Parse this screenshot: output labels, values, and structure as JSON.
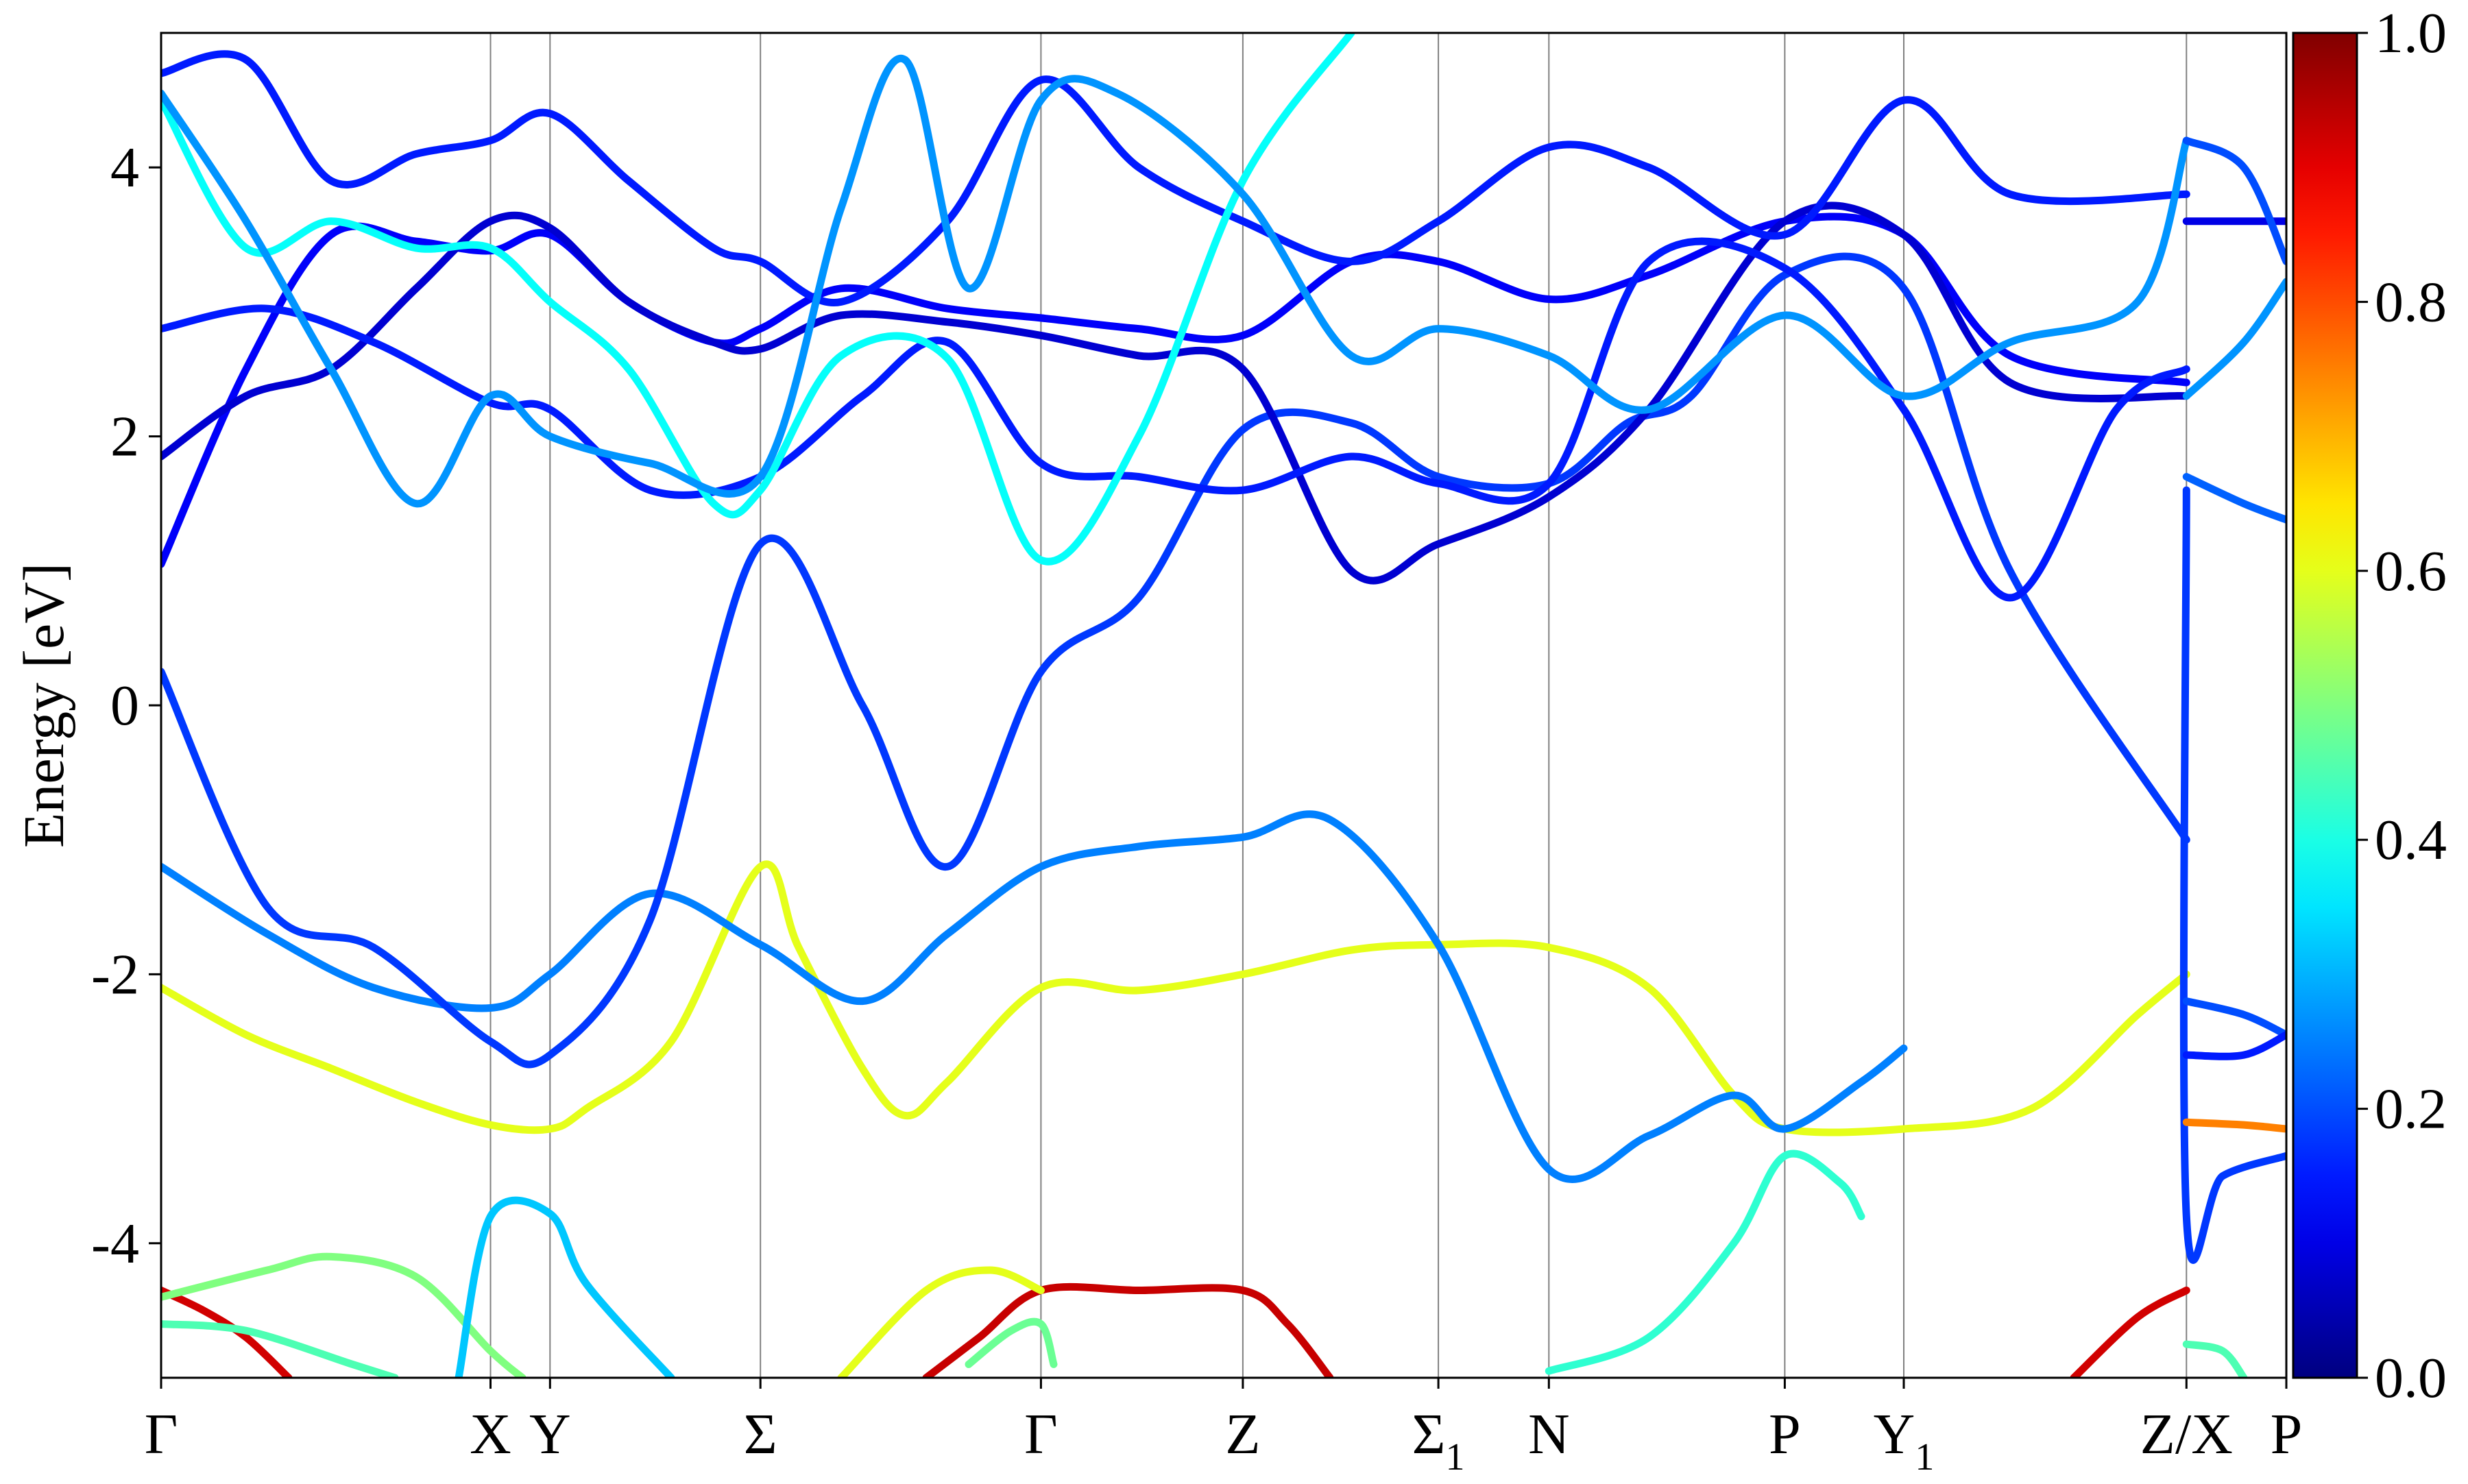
{
  "chart_data": {
    "type": "line",
    "title": "",
    "xlabel": "",
    "ylabel": "Energy [eV]",
    "ylim": [
      -5,
      5
    ],
    "yticks": [
      -4,
      -2,
      0,
      2,
      4
    ],
    "ytick_labels": [
      "-4",
      "-2",
      "0",
      "2",
      "4"
    ],
    "grid": "vertical lines at high-symmetry k-points",
    "kpoints": [
      {
        "label": "Γ",
        "sub": "",
        "x": 0.0
      },
      {
        "label": "X",
        "sub": "",
        "x": 0.155
      },
      {
        "label": "Y",
        "sub": "",
        "x": 0.183
      },
      {
        "label": "Σ",
        "sub": "",
        "x": 0.282
      },
      {
        "label": "Γ",
        "sub": "",
        "x": 0.414
      },
      {
        "label": "Z",
        "sub": "",
        "x": 0.509
      },
      {
        "label": "Σ",
        "sub": "1",
        "x": 0.601
      },
      {
        "label": "N",
        "sub": "",
        "x": 0.653
      },
      {
        "label": "P",
        "sub": "",
        "x": 0.764
      },
      {
        "label": "Y",
        "sub": "1",
        "x": 0.82
      },
      {
        "label": "Z/X",
        "sub": "",
        "x": 0.953
      },
      {
        "label": "P",
        "sub": "",
        "x": 1.0
      }
    ],
    "colorbar": {
      "colormap": "jet",
      "range": [
        0.0,
        1.0
      ],
      "ticks": [
        0.0,
        0.2,
        0.4,
        0.6,
        0.8,
        1.0
      ],
      "tick_labels": [
        "0.0",
        "0.2",
        "0.4",
        "0.6",
        "0.8",
        "1.0"
      ]
    },
    "series": [
      {
        "points": [
          [
            0.0,
            -4.35
          ],
          [
            0.02,
            -4.5
          ],
          [
            0.04,
            -4.7
          ],
          [
            0.06,
            -5.0
          ]
        ],
        "weight": 0.92
      },
      {
        "points": [
          [
            0.36,
            -5.0
          ],
          [
            0.385,
            -4.7
          ],
          [
            0.414,
            -4.35
          ],
          [
            0.46,
            -4.35
          ],
          [
            0.509,
            -4.35
          ],
          [
            0.53,
            -4.6
          ],
          [
            0.55,
            -5.0
          ]
        ],
        "weight": 0.93
      },
      {
        "points": [
          [
            0.9,
            -5.0
          ],
          [
            0.93,
            -4.55
          ],
          [
            0.953,
            -4.35
          ]
        ],
        "weight": 0.92
      },
      {
        "points": [
          [
            0.0,
            -4.4
          ],
          [
            0.05,
            -4.2
          ],
          [
            0.08,
            -4.1
          ],
          [
            0.12,
            -4.25
          ],
          [
            0.155,
            -4.8
          ],
          [
            0.17,
            -5.0
          ]
        ],
        "weight": 0.5
      },
      {
        "points": [
          [
            0.0,
            -4.6
          ],
          [
            0.04,
            -4.65
          ],
          [
            0.09,
            -4.9
          ],
          [
            0.11,
            -5.0
          ]
        ],
        "weight": 0.45
      },
      {
        "points": [
          [
            0.14,
            -5.0
          ],
          [
            0.155,
            -3.8
          ],
          [
            0.183,
            -3.78
          ],
          [
            0.2,
            -4.3
          ],
          [
            0.24,
            -5.0
          ]
        ],
        "weight": 0.32
      },
      {
        "points": [
          [
            0.32,
            -5.0
          ],
          [
            0.36,
            -4.35
          ],
          [
            0.39,
            -4.2
          ],
          [
            0.414,
            -4.35
          ]
        ],
        "weight": 0.6
      },
      {
        "points": [
          [
            0.38,
            -4.9
          ],
          [
            0.4,
            -4.65
          ],
          [
            0.414,
            -4.6
          ],
          [
            0.42,
            -4.9
          ]
        ],
        "weight": 0.48
      },
      {
        "points": [
          [
            0.653,
            -4.95
          ],
          [
            0.7,
            -4.7
          ],
          [
            0.74,
            -4.0
          ],
          [
            0.764,
            -3.35
          ],
          [
            0.79,
            -3.55
          ],
          [
            0.8,
            -3.8
          ]
        ],
        "weight": 0.42
      },
      {
        "points": [
          [
            0.0,
            -2.1
          ],
          [
            0.04,
            -2.45
          ],
          [
            0.08,
            -2.7
          ],
          [
            0.12,
            -2.95
          ],
          [
            0.155,
            -3.12
          ],
          [
            0.183,
            -3.15
          ],
          [
            0.2,
            -3.0
          ],
          [
            0.24,
            -2.5
          ],
          [
            0.282,
            -1.2
          ],
          [
            0.3,
            -1.8
          ],
          [
            0.33,
            -2.7
          ],
          [
            0.35,
            -3.05
          ],
          [
            0.37,
            -2.8
          ],
          [
            0.414,
            -2.1
          ],
          [
            0.46,
            -2.12
          ],
          [
            0.509,
            -2.0
          ],
          [
            0.56,
            -1.82
          ],
          [
            0.601,
            -1.78
          ],
          [
            0.653,
            -1.8
          ],
          [
            0.7,
            -2.1
          ],
          [
            0.74,
            -2.9
          ],
          [
            0.764,
            -3.15
          ],
          [
            0.82,
            -3.15
          ],
          [
            0.88,
            -3.0
          ],
          [
            0.93,
            -2.3
          ],
          [
            0.953,
            -2.0
          ]
        ],
        "weight": 0.6
      },
      {
        "points": [
          [
            0.0,
            -1.2
          ],
          [
            0.05,
            -1.7
          ],
          [
            0.1,
            -2.1
          ],
          [
            0.155,
            -2.25
          ],
          [
            0.183,
            -2.0
          ],
          [
            0.23,
            -1.4
          ],
          [
            0.282,
            -1.78
          ],
          [
            0.33,
            -2.2
          ],
          [
            0.37,
            -1.7
          ],
          [
            0.414,
            -1.2
          ],
          [
            0.46,
            -1.05
          ],
          [
            0.509,
            -0.98
          ],
          [
            0.55,
            -0.85
          ],
          [
            0.601,
            -1.78
          ],
          [
            0.653,
            -3.45
          ],
          [
            0.7,
            -3.2
          ],
          [
            0.74,
            -2.9
          ],
          [
            0.764,
            -3.15
          ],
          [
            0.8,
            -2.8
          ],
          [
            0.82,
            -2.55
          ]
        ],
        "weight": 0.25
      },
      {
        "points": [
          [
            0.0,
            0.25
          ],
          [
            0.05,
            -1.5
          ],
          [
            0.1,
            -1.8
          ],
          [
            0.155,
            -2.5
          ],
          [
            0.183,
            -2.6
          ],
          [
            0.23,
            -1.6
          ],
          [
            0.282,
            1.2
          ],
          [
            0.33,
            0.0
          ],
          [
            0.37,
            -1.2
          ],
          [
            0.414,
            0.25
          ],
          [
            0.46,
            0.8
          ],
          [
            0.509,
            2.05
          ],
          [
            0.56,
            2.1
          ],
          [
            0.601,
            1.7
          ],
          [
            0.653,
            1.65
          ],
          [
            0.69,
            2.1
          ],
          [
            0.72,
            2.3
          ],
          [
            0.764,
            3.2
          ],
          [
            0.82,
            3.1
          ],
          [
            0.87,
            1.0
          ],
          [
            0.953,
            -1.0
          ]
        ],
        "weight": 0.18
      },
      {
        "points": [
          [
            0.0,
            1.05
          ],
          [
            0.04,
            2.5
          ],
          [
            0.08,
            3.5
          ],
          [
            0.12,
            3.45
          ],
          [
            0.155,
            3.38
          ],
          [
            0.183,
            3.5
          ],
          [
            0.22,
            3.0
          ],
          [
            0.26,
            2.7
          ],
          [
            0.282,
            2.8
          ],
          [
            0.32,
            3.1
          ],
          [
            0.37,
            2.95
          ],
          [
            0.414,
            2.88
          ],
          [
            0.46,
            2.8
          ],
          [
            0.509,
            2.75
          ],
          [
            0.56,
            3.3
          ],
          [
            0.601,
            3.3
          ],
          [
            0.653,
            3.02
          ],
          [
            0.7,
            3.2
          ],
          [
            0.764,
            3.6
          ],
          [
            0.82,
            3.5
          ],
          [
            0.87,
            2.6
          ],
          [
            0.953,
            2.4
          ]
        ],
        "weight": 0.12
      },
      {
        "points": [
          [
            0.0,
            1.85
          ],
          [
            0.04,
            2.3
          ],
          [
            0.08,
            2.5
          ],
          [
            0.12,
            3.1
          ],
          [
            0.155,
            3.6
          ],
          [
            0.183,
            3.55
          ],
          [
            0.22,
            3.0
          ],
          [
            0.26,
            2.7
          ],
          [
            0.282,
            2.65
          ],
          [
            0.32,
            2.9
          ],
          [
            0.37,
            2.85
          ],
          [
            0.414,
            2.75
          ],
          [
            0.46,
            2.6
          ],
          [
            0.509,
            2.5
          ],
          [
            0.56,
            1.0
          ],
          [
            0.601,
            1.2
          ],
          [
            0.653,
            1.55
          ],
          [
            0.7,
            2.2
          ],
          [
            0.764,
            3.6
          ],
          [
            0.82,
            3.5
          ],
          [
            0.87,
            2.4
          ],
          [
            0.953,
            2.3
          ]
        ],
        "weight": 0.08
      },
      {
        "points": [
          [
            0.0,
            2.8
          ],
          [
            0.05,
            2.95
          ],
          [
            0.1,
            2.7
          ],
          [
            0.155,
            2.25
          ],
          [
            0.183,
            2.2
          ],
          [
            0.23,
            1.6
          ],
          [
            0.282,
            1.7
          ],
          [
            0.33,
            2.3
          ],
          [
            0.37,
            2.7
          ],
          [
            0.414,
            1.8
          ],
          [
            0.46,
            1.7
          ],
          [
            0.509,
            1.6
          ],
          [
            0.56,
            1.85
          ],
          [
            0.601,
            1.65
          ],
          [
            0.653,
            1.65
          ],
          [
            0.7,
            3.3
          ],
          [
            0.764,
            3.25
          ],
          [
            0.82,
            2.2
          ],
          [
            0.87,
            0.8
          ],
          [
            0.92,
            2.2
          ],
          [
            0.953,
            2.5
          ]
        ],
        "weight": 0.15
      },
      {
        "points": [
          [
            0.0,
            4.7
          ],
          [
            0.04,
            4.8
          ],
          [
            0.08,
            3.9
          ],
          [
            0.12,
            4.1
          ],
          [
            0.155,
            4.2
          ],
          [
            0.183,
            4.4
          ],
          [
            0.22,
            3.9
          ],
          [
            0.26,
            3.4
          ],
          [
            0.282,
            3.3
          ],
          [
            0.32,
            3.0
          ],
          [
            0.37,
            3.6
          ],
          [
            0.414,
            4.65
          ],
          [
            0.46,
            4.0
          ],
          [
            0.509,
            3.6
          ],
          [
            0.56,
            3.3
          ],
          [
            0.601,
            3.6
          ],
          [
            0.653,
            4.15
          ],
          [
            0.7,
            4.0
          ],
          [
            0.764,
            3.5
          ],
          [
            0.82,
            4.5
          ],
          [
            0.87,
            3.8
          ],
          [
            0.953,
            3.8
          ]
        ],
        "weight": 0.15
      },
      {
        "points": [
          [
            0.0,
            4.5
          ],
          [
            0.04,
            3.4
          ],
          [
            0.08,
            3.6
          ],
          [
            0.12,
            3.4
          ],
          [
            0.155,
            3.4
          ],
          [
            0.183,
            3.0
          ],
          [
            0.22,
            2.5
          ],
          [
            0.26,
            1.5
          ],
          [
            0.282,
            1.6
          ],
          [
            0.32,
            2.6
          ],
          [
            0.37,
            2.58
          ],
          [
            0.414,
            1.08
          ],
          [
            0.46,
            2.0
          ],
          [
            0.509,
            3.9
          ],
          [
            0.56,
            5.0
          ]
        ],
        "weight": 0.38
      },
      {
        "points": [
          [
            0.0,
            4.55
          ],
          [
            0.04,
            3.6
          ],
          [
            0.08,
            2.5
          ],
          [
            0.12,
            1.5
          ],
          [
            0.155,
            2.3
          ],
          [
            0.183,
            2.0
          ],
          [
            0.23,
            1.8
          ],
          [
            0.282,
            1.7
          ],
          [
            0.32,
            3.7
          ],
          [
            0.35,
            4.8
          ],
          [
            0.38,
            3.1
          ],
          [
            0.414,
            4.5
          ],
          [
            0.45,
            4.55
          ],
          [
            0.509,
            3.8
          ],
          [
            0.56,
            2.6
          ],
          [
            0.601,
            2.8
          ],
          [
            0.653,
            2.6
          ],
          [
            0.7,
            2.2
          ],
          [
            0.764,
            2.9
          ],
          [
            0.82,
            2.3
          ],
          [
            0.87,
            2.7
          ],
          [
            0.93,
            3.0
          ],
          [
            0.953,
            4.2
          ]
        ],
        "weight": 0.27
      },
      {
        "points": [
          [
            0.953,
            1.6
          ],
          [
            0.953,
            -3.8
          ],
          [
            0.97,
            -3.5
          ],
          [
            1.0,
            -3.35
          ]
        ],
        "weight": 0.18
      },
      {
        "points": [
          [
            0.953,
            -2.2
          ],
          [
            0.98,
            -2.3
          ],
          [
            1.0,
            -2.45
          ]
        ],
        "weight": 0.2
      },
      {
        "points": [
          [
            0.953,
            -2.6
          ],
          [
            0.98,
            -2.6
          ],
          [
            1.0,
            -2.45
          ]
        ],
        "weight": 0.15
      },
      {
        "points": [
          [
            0.953,
            -3.1
          ],
          [
            0.98,
            -3.12
          ],
          [
            1.0,
            -3.15
          ]
        ],
        "weight": 0.75
      },
      {
        "points": [
          [
            0.953,
            3.6
          ],
          [
            0.98,
            3.6
          ],
          [
            1.0,
            3.6
          ]
        ],
        "weight": 0.1
      },
      {
        "points": [
          [
            0.953,
            2.3
          ],
          [
            0.98,
            2.7
          ],
          [
            1.0,
            3.15
          ]
        ],
        "weight": 0.27
      },
      {
        "points": [
          [
            0.953,
            4.2
          ],
          [
            0.98,
            4.0
          ],
          [
            1.0,
            3.3
          ]
        ],
        "weight": 0.2
      },
      {
        "points": [
          [
            0.953,
            1.7
          ],
          [
            0.98,
            1.5
          ],
          [
            1.0,
            1.38
          ]
        ],
        "weight": 0.22
      },
      {
        "points": [
          [
            0.953,
            -4.75
          ],
          [
            0.97,
            -4.8
          ],
          [
            0.98,
            -5.0
          ]
        ],
        "weight": 0.45
      }
    ]
  }
}
